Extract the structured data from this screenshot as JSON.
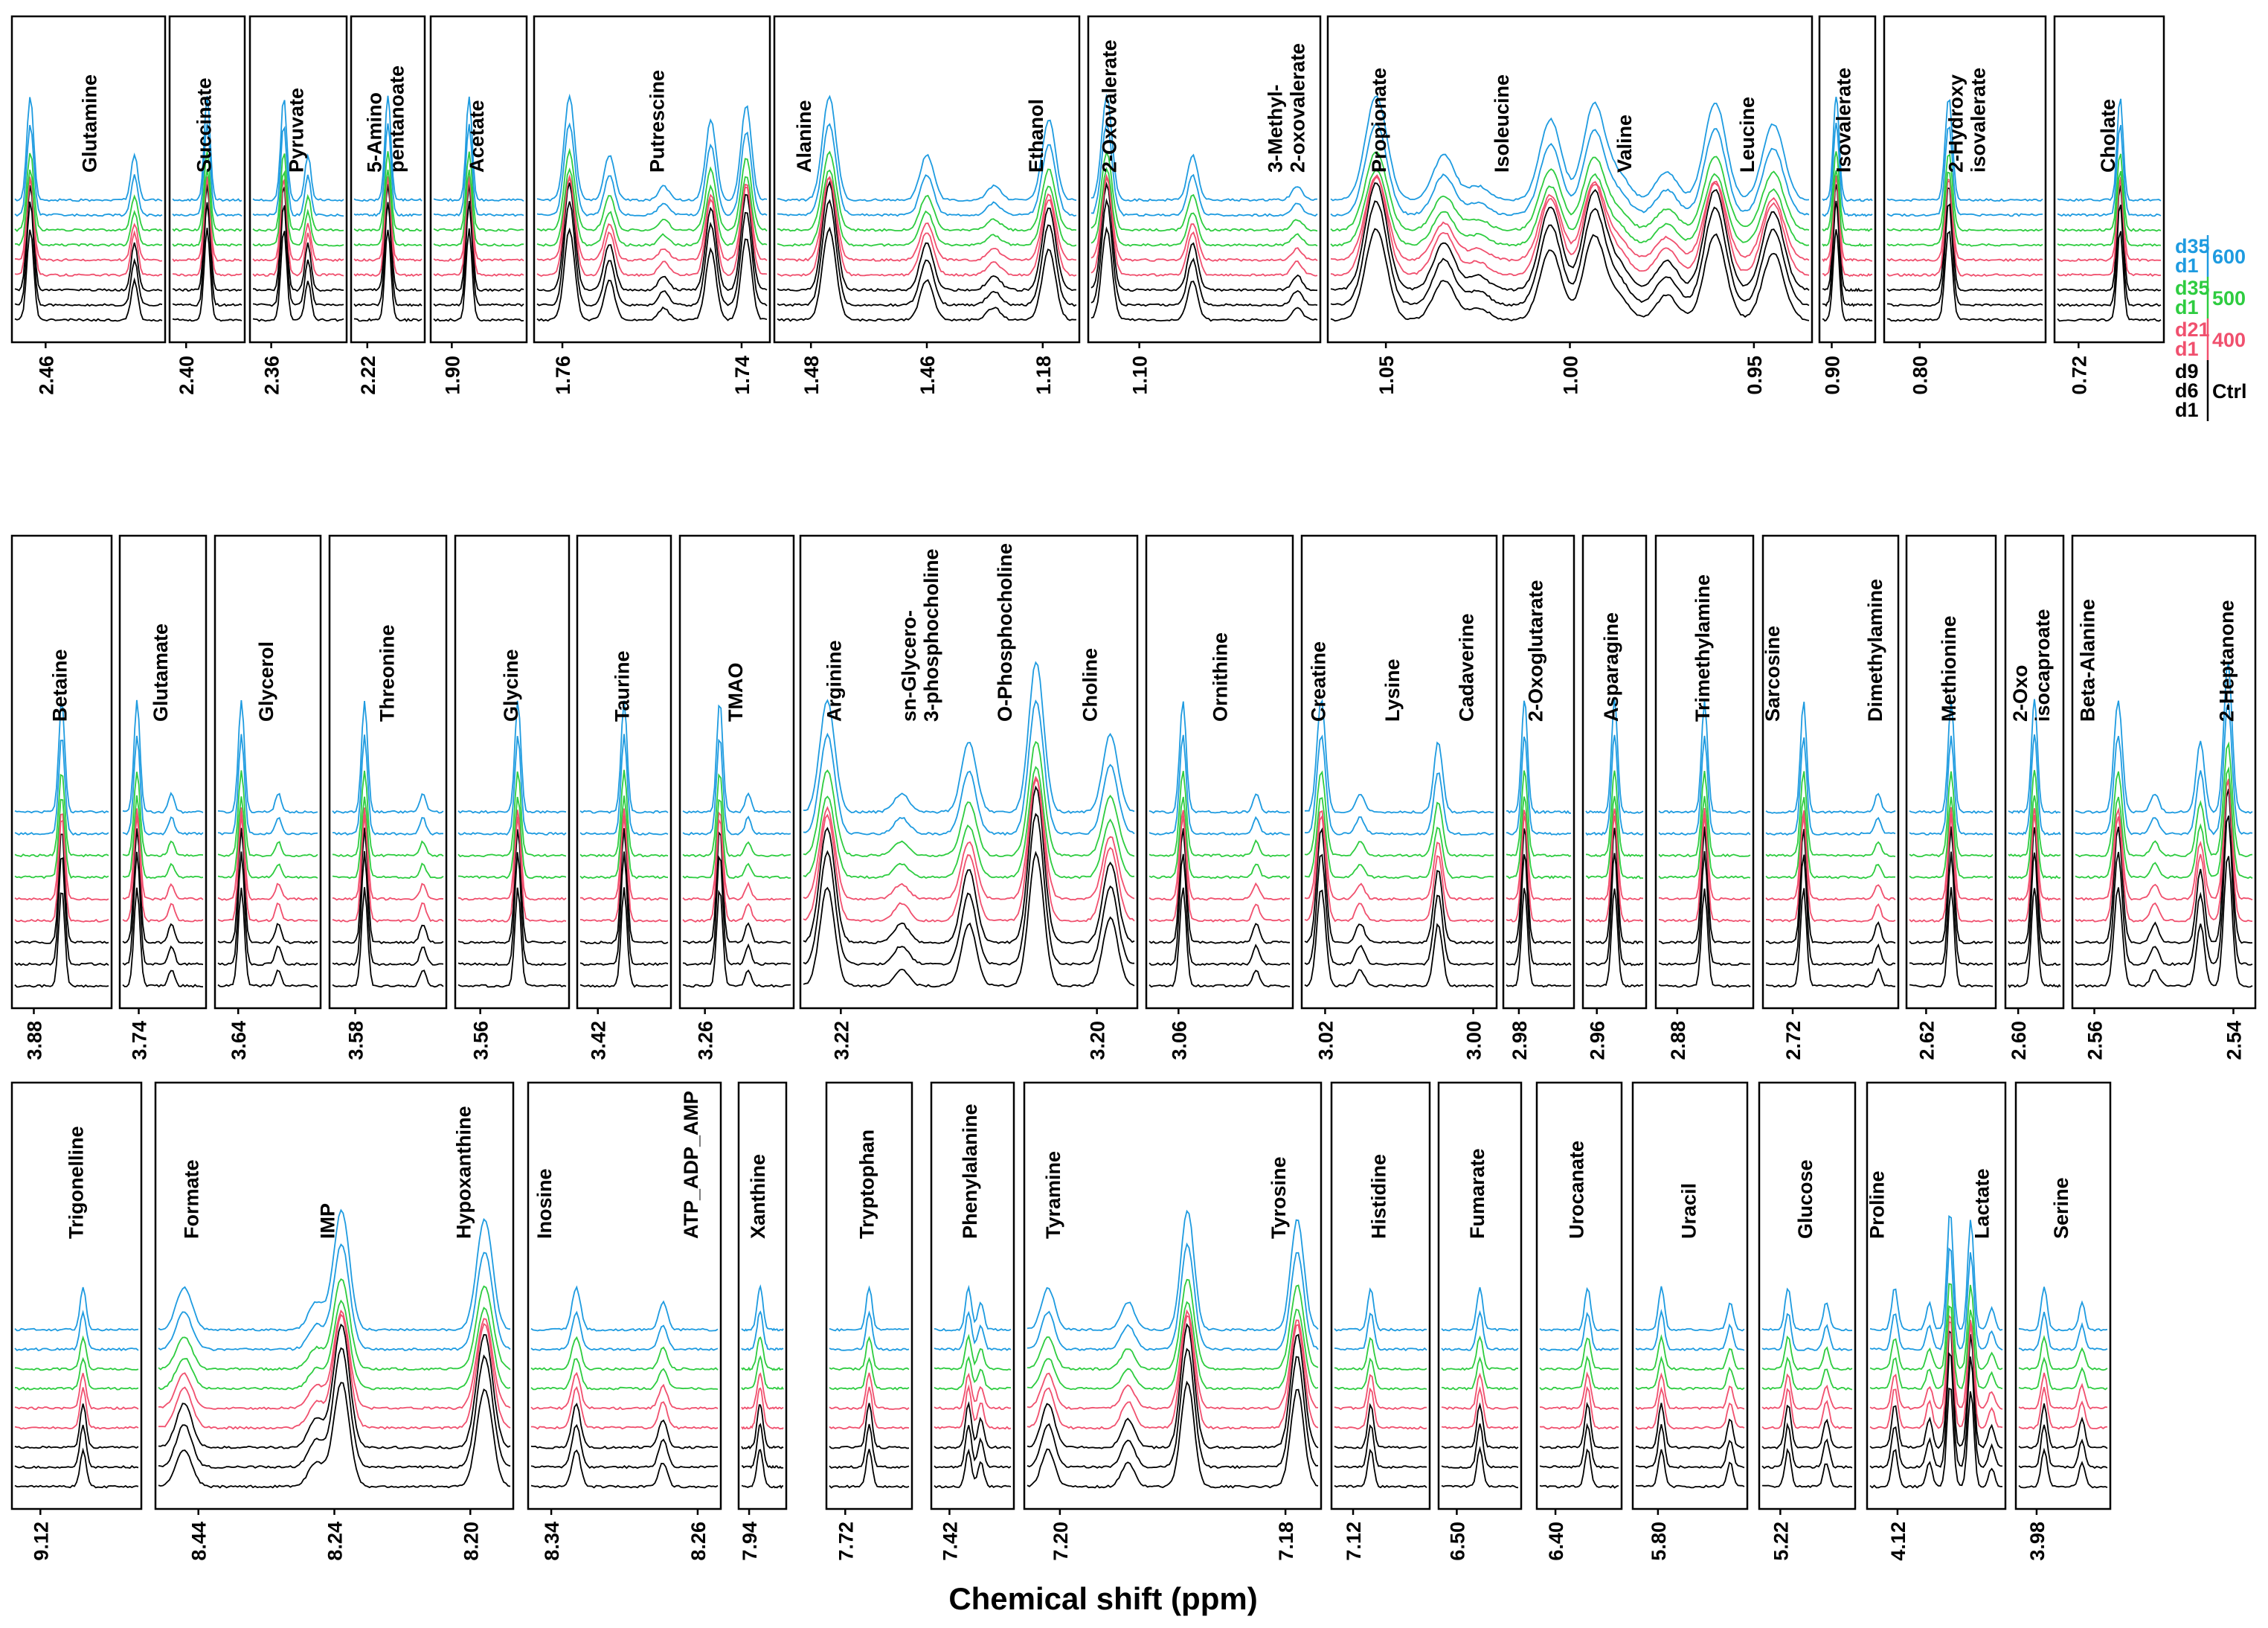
{
  "chart_data": {
    "type": "line",
    "title": "",
    "xlabel": "Chemical shift (ppm)",
    "ylabel": "",
    "grid": false,
    "series_order_bottom_to_top": [
      "Ctrl d1",
      "Ctrl d6",
      "Ctrl d9",
      "400 d1",
      "400 d21",
      "500 d1",
      "500 d35",
      "600 d1",
      "600 d35"
    ],
    "legend": {
      "placement": "right of top row",
      "groups": [
        {
          "name": "600",
          "color": "#1e9be0",
          "days": [
            "d35",
            "d1"
          ]
        },
        {
          "name": "500",
          "color": "#2ecc40",
          "days": [
            "d35",
            "d1"
          ]
        },
        {
          "name": "400",
          "color": "#f0506e",
          "days": [
            "d21",
            "d1"
          ]
        },
        {
          "name": "Ctrl",
          "color": "#000000",
          "days": [
            "d9",
            "d6",
            "d1"
          ]
        }
      ]
    },
    "rows": [
      {
        "panels": [
          {
            "ticks": [
              "2.46"
            ],
            "labels": [
              "Glutamine"
            ],
            "peaks": [
              0.12,
              0.8
            ]
          },
          {
            "ticks": [
              "2.40"
            ],
            "labels": [
              "Succinate"
            ],
            "peaks": [
              0.5
            ]
          },
          {
            "ticks": [
              "2.36"
            ],
            "labels": [
              "Pyruvate"
            ],
            "peaks": [
              0.35,
              0.6
            ]
          },
          {
            "ticks": [
              "2.22"
            ],
            "labels": [
              "5-Amino\npentanoate"
            ],
            "peaks": [
              0.5
            ]
          },
          {
            "ticks": [
              "1.90"
            ],
            "labels": [
              "Acetate"
            ],
            "peaks": [
              0.4
            ]
          },
          {
            "ticks": [
              "1.76",
              "1.74"
            ],
            "labels": [
              "Putrescine"
            ],
            "peaks": [
              0.15,
              0.32,
              0.55,
              0.75,
              0.9
            ]
          },
          {
            "ticks": [
              "1.48",
              "1.46",
              "1.18"
            ],
            "labels": [
              "Alanine",
              "Ethanol"
            ],
            "peaks": [
              0.18,
              0.5,
              0.72,
              0.9
            ]
          },
          {
            "ticks": [
              "1.10"
            ],
            "labels": [
              "2-Oxovalerate",
              "3-Methyl-\n2-oxovalerate"
            ],
            "peaks": [
              0.08,
              0.45,
              0.9
            ]
          },
          {
            "ticks": [
              "1.05",
              "1.00",
              "0.95"
            ],
            "labels": [
              "Propionate",
              "Isoleucine",
              "Valine",
              "Leucine"
            ],
            "peaks": [
              0.1,
              0.24,
              0.31,
              0.46,
              0.55,
              0.6,
              0.7,
              0.8,
              0.92
            ]
          },
          {
            "ticks": [
              "0.90"
            ],
            "labels": [
              "Isovalerate"
            ],
            "peaks": [
              0.3
            ]
          },
          {
            "ticks": [
              "0.80"
            ],
            "labels": [
              "2-Hydroxy\nisovalerate"
            ],
            "peaks": [
              0.4
            ]
          },
          {
            "ticks": [
              "0.72"
            ],
            "labels": [
              "Cholate"
            ],
            "peaks": [
              0.6
            ]
          }
        ]
      },
      {
        "panels": [
          {
            "ticks": [
              "3.88"
            ],
            "labels": [
              "Betaine"
            ],
            "peaks": [
              0.5
            ]
          },
          {
            "ticks": [
              "3.74"
            ],
            "labels": [
              "Glutamate"
            ],
            "peaks": [
              0.2,
              0.6
            ]
          },
          {
            "ticks": [
              "3.64"
            ],
            "labels": [
              "Glycerol"
            ],
            "peaks": [
              0.25,
              0.6
            ]
          },
          {
            "ticks": [
              "3.58"
            ],
            "labels": [
              "Threonine"
            ],
            "peaks": [
              0.3,
              0.8
            ]
          },
          {
            "ticks": [
              "3.56"
            ],
            "labels": [
              "Glycine"
            ],
            "peaks": [
              0.55
            ]
          },
          {
            "ticks": [
              "3.42"
            ],
            "labels": [
              "Taurine"
            ],
            "peaks": [
              0.5
            ]
          },
          {
            "ticks": [
              "3.26"
            ],
            "labels": [
              "TMAO"
            ],
            "peaks": [
              0.35,
              0.6
            ]
          },
          {
            "ticks": [
              "3.22",
              "3.20"
            ],
            "labels": [
              "Arginine",
              "sn-Glycero-\n3-phosphocholine",
              "O-Phosphocholine",
              "Choline"
            ],
            "peaks": [
              0.08,
              0.3,
              0.5,
              0.7,
              0.92
            ]
          },
          {
            "ticks": [
              "3.06"
            ],
            "labels": [
              "Ornithine"
            ],
            "peaks": [
              0.25,
              0.75
            ]
          },
          {
            "ticks": [
              "3.02",
              "3.00"
            ],
            "labels": [
              "Creatine",
              "Lysine",
              "Cadaverine"
            ],
            "peaks": [
              0.1,
              0.3,
              0.7
            ]
          },
          {
            "ticks": [
              "2.98"
            ],
            "labels": [
              "2-Oxoglutarate"
            ],
            "peaks": [
              0.3
            ]
          },
          {
            "ticks": [
              "2.96"
            ],
            "labels": [
              "Asparagine"
            ],
            "peaks": [
              0.5
            ]
          },
          {
            "ticks": [
              "2.88"
            ],
            "labels": [
              "Trimethylamine"
            ],
            "peaks": [
              0.5
            ]
          },
          {
            "ticks": [
              "2.72"
            ],
            "labels": [
              "Sarcosine",
              "Dimethylamine"
            ],
            "peaks": [
              0.3,
              0.85
            ]
          },
          {
            "ticks": [
              "2.62"
            ],
            "labels": [
              "Methionine"
            ],
            "peaks": [
              0.5
            ]
          },
          {
            "ticks": [
              "2.60"
            ],
            "labels": [
              "2-Oxo\nisocaproate"
            ],
            "peaks": [
              0.5
            ]
          },
          {
            "ticks": [
              "2.56",
              "2.54"
            ],
            "labels": [
              "Beta-Alanine",
              "2-Heptanone"
            ],
            "peaks": [
              0.25,
              0.45,
              0.7,
              0.85
            ]
          }
        ]
      },
      {
        "panels": [
          {
            "ticks": [
              "9.12"
            ],
            "labels": [
              "Trigonelline"
            ],
            "peaks": [
              0.55
            ]
          },
          {
            "ticks": [
              "8.44",
              "8.24",
              "8.20"
            ],
            "labels": [
              "Formate",
              "IMP",
              "Hypoxanthine"
            ],
            "peaks": [
              0.08,
              0.45,
              0.52,
              0.92
            ]
          },
          {
            "ticks": [
              "8.34",
              "8.26"
            ],
            "labels": [
              "Inosine",
              "ATP_ADP_AMP"
            ],
            "peaks": [
              0.25,
              0.7
            ]
          },
          {
            "ticks": [
              "7.94"
            ],
            "labels": [
              "Xanthine"
            ],
            "peaks": [
              0.45
            ]
          },
          {
            "ticks": [
              "7.72"
            ],
            "labels": [
              "Tryptophan"
            ],
            "peaks": [
              0.5
            ]
          },
          {
            "ticks": [
              "7.42"
            ],
            "labels": [
              "Phenylalanine"
            ],
            "peaks": [
              0.45,
              0.6
            ]
          },
          {
            "ticks": [
              "7.20",
              "7.18"
            ],
            "labels": [
              "Tyramine",
              "Tyrosine"
            ],
            "peaks": [
              0.08,
              0.35,
              0.55,
              0.92
            ]
          },
          {
            "ticks": [
              "7.12"
            ],
            "labels": [
              "Histidine"
            ],
            "peaks": [
              0.4
            ]
          },
          {
            "ticks": [
              "6.50"
            ],
            "labels": [
              "Fumarate"
            ],
            "peaks": [
              0.5
            ]
          },
          {
            "ticks": [
              "6.40"
            ],
            "labels": [
              "Urocanate"
            ],
            "peaks": [
              0.6
            ]
          },
          {
            "ticks": [
              "5.80"
            ],
            "labels": [
              "Uracil"
            ],
            "peaks": [
              0.25,
              0.85
            ]
          },
          {
            "ticks": [
              "5.22"
            ],
            "labels": [
              "Glucose"
            ],
            "peaks": [
              0.3,
              0.7
            ]
          },
          {
            "ticks": [
              "4.12"
            ],
            "labels": [
              "Proline",
              "Lactate"
            ],
            "peaks": [
              0.2,
              0.45,
              0.6,
              0.75,
              0.9
            ]
          },
          {
            "ticks": [
              "3.98"
            ],
            "labels": [
              "Serine"
            ],
            "peaks": [
              0.3,
              0.7
            ]
          }
        ]
      }
    ]
  }
}
